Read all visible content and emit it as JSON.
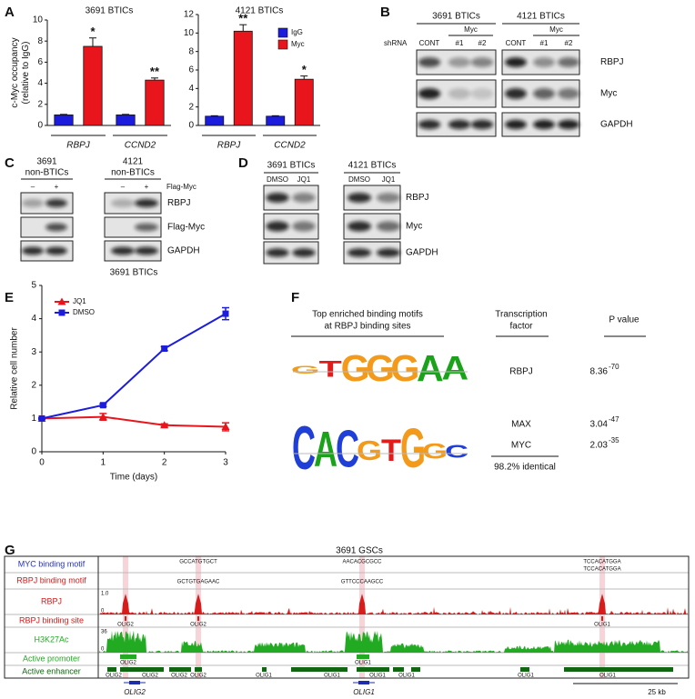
{
  "panel_labels": [
    "A",
    "B",
    "C",
    "D",
    "E",
    "F",
    "G"
  ],
  "chart_data": [
    {
      "type": "bar",
      "title": "3691 BTICs",
      "ylabel": [
        "c-Myc occupancy",
        "(relative to IgG)"
      ],
      "categories": [
        "RBPJ",
        "CCND2"
      ],
      "series": [
        {
          "color": "#1c1cdc",
          "values": [
            1,
            1
          ],
          "errors": [
            0.05,
            0.05
          ]
        },
        {
          "color": "#e8161c",
          "values": [
            7.5,
            4.3
          ],
          "errors": [
            0.8,
            0.2
          ],
          "significance": [
            "*",
            "**"
          ]
        }
      ],
      "ylim": [
        0,
        10
      ],
      "yticks": [
        0,
        2,
        4,
        6,
        8,
        10
      ]
    },
    {
      "type": "bar",
      "title": "4121 BTICs",
      "categories": [
        "RBPJ",
        "CCND2"
      ],
      "series": [
        {
          "name": "IgG",
          "color": "#1c1cdc",
          "values": [
            1,
            1
          ],
          "errors": [
            0.05,
            0.05
          ]
        },
        {
          "name": "Myc",
          "color": "#e8161c",
          "values": [
            10.2,
            5.0
          ],
          "errors": [
            0.7,
            0.35
          ],
          "significance": [
            "**",
            "*"
          ]
        }
      ],
      "ylim": [
        0,
        12
      ],
      "yticks": [
        0,
        2,
        4,
        6,
        8,
        10,
        12
      ],
      "legend": "upper right"
    },
    {
      "type": "line",
      "title": "3691 BTICs",
      "xlabel": "Time (days)",
      "ylabel": "Relative cell number",
      "x": [
        0,
        1,
        2,
        3
      ],
      "series": [
        {
          "name": "JQ1",
          "color": "#e8161c",
          "marker": "triangle",
          "values": [
            1,
            1.05,
            0.8,
            0.75
          ],
          "errors": [
            0.02,
            0.1,
            0.04,
            0.12
          ]
        },
        {
          "name": "DMSO",
          "color": "#1c1cdc",
          "marker": "square",
          "values": [
            1,
            1.4,
            3.1,
            4.15
          ],
          "errors": [
            0.02,
            0.04,
            0.06,
            0.18
          ]
        }
      ],
      "xlim": [
        0,
        3
      ],
      "ylim": [
        0,
        5
      ],
      "xticks": [
        0,
        1,
        2,
        3
      ],
      "yticks": [
        0,
        1,
        2,
        3,
        4,
        5
      ],
      "legend": "upper left"
    }
  ],
  "blots": {
    "B": {
      "lane_caption": "shRNA",
      "groups": [
        {
          "title": "3691 BTICs",
          "subgroup": "Myc",
          "lanes": [
            "CONT",
            "#1",
            "#2"
          ]
        },
        {
          "title": "4121 BTICs",
          "subgroup": "Myc",
          "lanes": [
            "CONT",
            "#1",
            "#2"
          ]
        }
      ],
      "rows": [
        "RBPJ",
        "Myc",
        "GAPDH"
      ]
    },
    "C": {
      "lane_caption": "Flag-Myc",
      "groups": [
        {
          "title": [
            "3691",
            "non-BTICs"
          ],
          "lanes": [
            "–",
            "+"
          ]
        },
        {
          "title": [
            "4121",
            "non-BTICs"
          ],
          "lanes": [
            "–",
            "+"
          ]
        }
      ],
      "rows": [
        "RBPJ",
        "Flag-Myc",
        "GAPDH"
      ]
    },
    "D": {
      "groups": [
        {
          "title": "3691 BTICs",
          "lanes": [
            "DMSO",
            "JQ1"
          ]
        },
        {
          "title": "4121 BTICs",
          "lanes": [
            "DMSO",
            "JQ1"
          ]
        }
      ],
      "rows": [
        "RBPJ",
        "Myc",
        "GAPDH"
      ]
    }
  },
  "motif_table": {
    "headers": [
      [
        "Top enriched binding motifs",
        "at RBPJ binding sites"
      ],
      [
        "Transcription",
        "factor"
      ],
      "P value"
    ],
    "rows": [
      {
        "logo": "GTGGGAA",
        "factors": [
          "RBPJ"
        ],
        "p": [
          {
            "mantissa": "8.36",
            "exponent": "-70"
          }
        ]
      },
      {
        "logo": "CACGTGGC",
        "factors": [
          "MAX",
          "MYC"
        ],
        "p": [
          {
            "mantissa": "3.04",
            "exponent": "-47"
          },
          {
            "mantissa": "2.03",
            "exponent": "-35"
          }
        ]
      }
    ],
    "note": "98.2% identical"
  },
  "genome": {
    "title": "3691 GSCs",
    "tracks": [
      "MYC binding motif",
      "RBPJ binding motif",
      "RBPJ",
      "RBPJ binding site",
      "H3K27Ac",
      "Active promoter",
      "Active enhancer"
    ],
    "track_colors": [
      "#2233bb",
      "#d81b1b",
      "#d81b1b",
      "#d81b1b",
      "#22aa22",
      "#22aa22",
      "#116611"
    ],
    "myc_motifs": [
      "GCCATGTGCT",
      "AACACGCGCC",
      "TCCACATGGA",
      "TCCACATGGA"
    ],
    "rbpj_motifs": [
      "GCTGTGAGAAC",
      "GTTCCCAAGCC"
    ],
    "rbpj_scale": [
      "1.0",
      "0"
    ],
    "h3k27ac_scale": [
      "36",
      "0"
    ],
    "binding_sites": [
      "OLIG2",
      "OLIG2",
      "OLIG1"
    ],
    "promoters": [
      "OLIG2",
      "OLIG1"
    ],
    "enhancers": [
      "OLIG2",
      "OLIG2",
      "OLIG2",
      "OLIG2",
      "OLIG1",
      "OLIG1",
      "OLIG1",
      "OLIG1",
      "OLIG1",
      "OLIG1"
    ],
    "genes": [
      "OLIG2",
      "OLIG1"
    ],
    "scale_bar": "25 kb"
  }
}
